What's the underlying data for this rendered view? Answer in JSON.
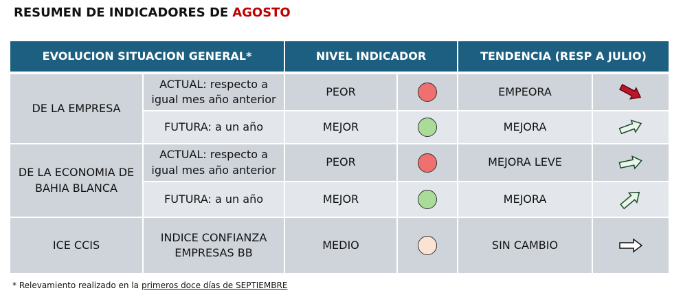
{
  "title": {
    "text": "RESUMEN DE INDICADORES DE",
    "highlight": "AGOSTO"
  },
  "table": {
    "header": [
      "EVOLUCION SITUACION GENERAL*",
      "NIVEL INDICADOR",
      "TENDENCIA (RESP A JULIO)"
    ],
    "groups": [
      {
        "label": "DE LA EMPRESA",
        "rows": [
          {
            "detail": "ACTUAL: respecto a igual mes año anterior",
            "nivel": "PEOR",
            "tendencia": "EMPEORA"
          },
          {
            "detail": "FUTURA: a un año",
            "nivel": "MEJOR",
            "tendencia": "MEJORA"
          }
        ]
      },
      {
        "label": "DE LA ECONOMIA DE BAHIA BLANCA",
        "rows": [
          {
            "detail": "ACTUAL: respecto a igual mes año anterior",
            "nivel": "PEOR",
            "tendencia": "MEJORA LEVE"
          },
          {
            "detail": "FUTURA: a un año",
            "nivel": "MEJOR",
            "tendencia": "MEJORA"
          }
        ]
      },
      {
        "label": "ICE CCIS",
        "rows": [
          {
            "detail": "INDICE CONFIANZA EMPRESAS BB",
            "nivel": "MEDIO",
            "tendencia": "SIN CAMBIO"
          }
        ]
      }
    ]
  },
  "footnote": {
    "text": "* Relevamiento realizado en la",
    "link": "primeros doce días de SEPTIEMBRE"
  }
}
